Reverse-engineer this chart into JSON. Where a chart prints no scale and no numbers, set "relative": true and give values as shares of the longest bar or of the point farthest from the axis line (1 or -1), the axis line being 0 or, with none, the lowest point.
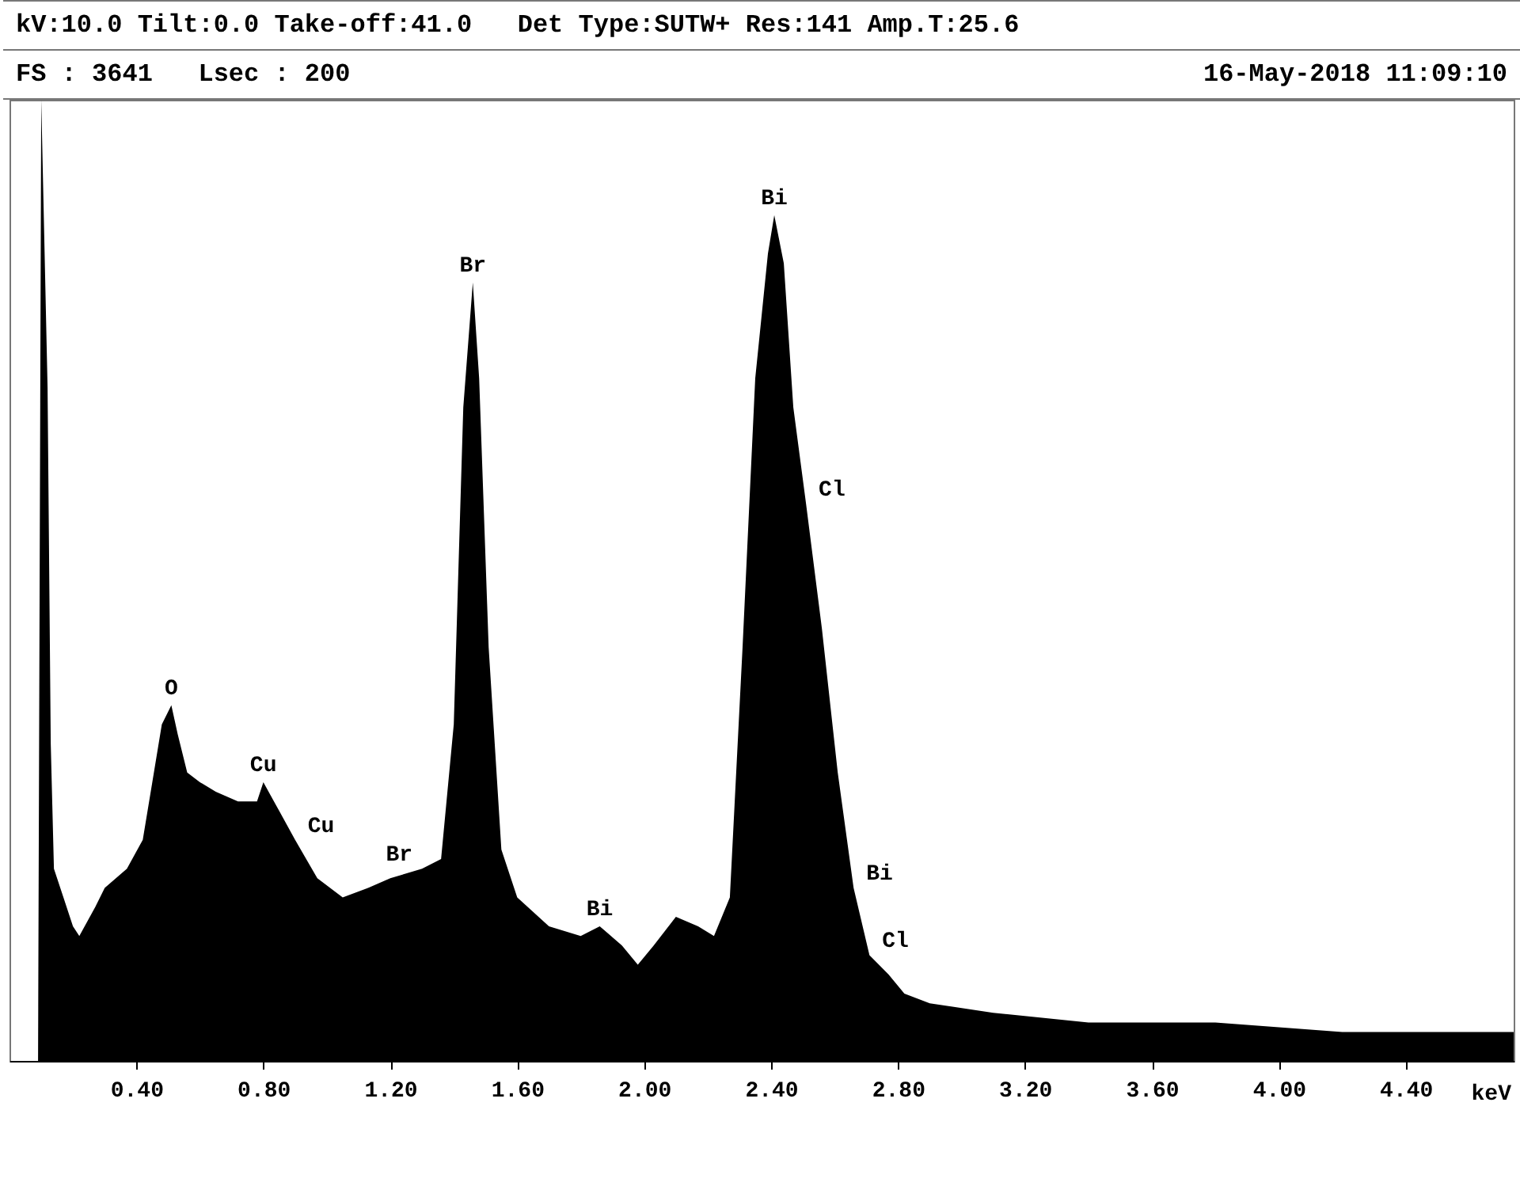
{
  "chart_data": {
    "type": "area",
    "title": "kV:10.0 Tilt:0.0 Take-off:41.0   Det Type:SUTW+ Res:141 Amp.T:25.6",
    "subtitle": "FS : 3641   Lsec : 200",
    "xlabel": "keV",
    "relative": true,
    "x": [
      0.09,
      0.1,
      0.12,
      0.13,
      0.14,
      0.17,
      0.2,
      0.22,
      0.27,
      0.3,
      0.37,
      0.42,
      0.45,
      0.48,
      0.51,
      0.53,
      0.56,
      0.6,
      0.65,
      0.72,
      0.78,
      0.8,
      0.85,
      0.9,
      0.97,
      1.05,
      1.13,
      1.2,
      1.3,
      1.36,
      1.4,
      1.43,
      1.46,
      1.48,
      1.51,
      1.55,
      1.6,
      1.7,
      1.8,
      1.86,
      1.93,
      1.98,
      2.03,
      2.1,
      2.17,
      2.22,
      2.27,
      2.31,
      2.35,
      2.39,
      2.41,
      2.44,
      2.47,
      2.51,
      2.56,
      2.61,
      2.66,
      2.71,
      2.77,
      2.82,
      2.9,
      3.1,
      3.4,
      3.8,
      4.2,
      4.6,
      4.74
    ],
    "series": [
      {
        "color": "#000000",
        "values": [
          0,
          1,
          0.7,
          0.33,
          0.2,
          0.17,
          0.14,
          0.13,
          0.16,
          0.18,
          0.2,
          0.23,
          0.29,
          0.35,
          0.37,
          0.34,
          0.3,
          0.29,
          0.28,
          0.27,
          0.27,
          0.29,
          0.26,
          0.23,
          0.19,
          0.17,
          0.18,
          0.19,
          0.2,
          0.21,
          0.35,
          0.68,
          0.81,
          0.71,
          0.43,
          0.22,
          0.17,
          0.14,
          0.13,
          0.14,
          0.12,
          0.1,
          0.12,
          0.15,
          0.14,
          0.13,
          0.17,
          0.43,
          0.71,
          0.84,
          0.88,
          0.83,
          0.68,
          0.58,
          0.45,
          0.3,
          0.18,
          0.11,
          0.09,
          0.07,
          0.06,
          0.05,
          0.04,
          0.04,
          0.03,
          0.03,
          0.03
        ]
      }
    ],
    "xlim": [
      0,
      4.74
    ],
    "xticks": [
      {
        "value": 0.4,
        "label": "0.40"
      },
      {
        "value": 0.8,
        "label": "0.80"
      },
      {
        "value": 1.2,
        "label": "1.20"
      },
      {
        "value": 1.6,
        "label": "1.60"
      },
      {
        "value": 2.0,
        "label": "2.00"
      },
      {
        "value": 2.4,
        "label": "2.40"
      },
      {
        "value": 2.8,
        "label": "2.80"
      },
      {
        "value": 3.2,
        "label": "3.20"
      },
      {
        "value": 3.6,
        "label": "3.60"
      },
      {
        "value": 4.0,
        "label": "4.00"
      },
      {
        "value": 4.4,
        "label": "4.40"
      }
    ],
    "annotations": [
      "16-May-2018 11:09:10",
      {
        "text": "O",
        "x": 0.51,
        "y": 0.37
      },
      {
        "text": "Cu",
        "x": 0.8,
        "y": 0.29
      },
      {
        "text": "Cu",
        "x": 0.9,
        "y": 0.23
      },
      {
        "text": "Br",
        "x": 1.3,
        "y": 0.2
      },
      {
        "text": "Br",
        "x": 1.46,
        "y": 0.81
      },
      {
        "text": "Bi",
        "x": 1.86,
        "y": 0.14
      },
      {
        "text": "Bi",
        "x": 2.41,
        "y": 0.88
      },
      {
        "text": "Cl",
        "x": 2.51,
        "y": 0.58
      },
      {
        "text": "Bi",
        "x": 2.66,
        "y": 0.18
      },
      {
        "text": "Cl",
        "x": 2.71,
        "y": 0.11
      }
    ],
    "grid": false
  }
}
